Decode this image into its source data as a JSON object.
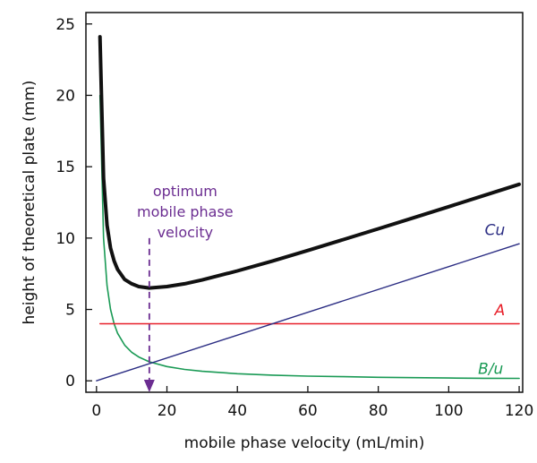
{
  "chart_data": {
    "type": "line",
    "xlabel": "mobile phase velocity (mL/min)",
    "ylabel": "height of theoretical plate (mm)",
    "xlim": [
      -3,
      121
    ],
    "ylim": [
      -0.8,
      25.8
    ],
    "xticks": [
      0,
      20,
      40,
      60,
      80,
      100,
      120
    ],
    "yticks": [
      0,
      5,
      10,
      15,
      20,
      25
    ],
    "grid": false,
    "legend": "none",
    "series": [
      {
        "name": "B/u",
        "color": "#1a9a55",
        "stroke": 1.6,
        "x": [
          1,
          2,
          3,
          4,
          5,
          6,
          8,
          10,
          12,
          15,
          20,
          25,
          30,
          40,
          50,
          60,
          70,
          80,
          90,
          100,
          110,
          120
        ],
        "y": [
          20,
          10,
          6.67,
          5,
          4,
          3.33,
          2.5,
          2,
          1.67,
          1.33,
          1,
          0.8,
          0.67,
          0.5,
          0.4,
          0.33,
          0.29,
          0.25,
          0.22,
          0.2,
          0.18,
          0.17
        ]
      },
      {
        "name": "A",
        "color": "#e8202a",
        "stroke": 1.4,
        "x": [
          1,
          120
        ],
        "y": [
          4,
          4
        ]
      },
      {
        "name": "Cu",
        "color": "#2b2d83",
        "stroke": 1.4,
        "x": [
          0,
          120
        ],
        "y": [
          0,
          9.6
        ]
      },
      {
        "name": "",
        "color": "#111111",
        "stroke": 4,
        "x": [
          1,
          2,
          3,
          4,
          5,
          6,
          8,
          10,
          12,
          15,
          20,
          25,
          30,
          40,
          50,
          60,
          70,
          80,
          90,
          100,
          110,
          120
        ],
        "y": [
          24.1,
          14.2,
          10.9,
          9.3,
          8.4,
          7.8,
          7.1,
          6.8,
          6.6,
          6.5,
          6.6,
          6.8,
          7.07,
          7.7,
          8.4,
          9.13,
          9.89,
          10.65,
          11.42,
          12.2,
          12.98,
          13.77
        ]
      }
    ],
    "labels": [
      {
        "text": "Cu",
        "x": 116,
        "y": 10.2,
        "color": "#2b2d83"
      },
      {
        "text": "A",
        "x": 116,
        "y": 4.6,
        "color": "#e8202a"
      },
      {
        "text": "B/u",
        "x": 115.5,
        "y": 0.5,
        "color": "#1a9a55"
      }
    ],
    "annotation": {
      "lines": [
        "optimum",
        "mobile phase",
        "velocity"
      ],
      "x": 15,
      "y_top": 10.0,
      "y_bottom": -0.8,
      "color": "#6b2d91"
    }
  }
}
